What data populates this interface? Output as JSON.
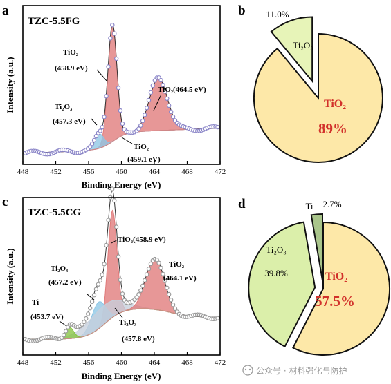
{
  "panel_labels": [
    "a",
    "b",
    "c",
    "d"
  ],
  "colors": {
    "tio2_fill": "#e07a7a",
    "ti2o3_fill": "#8dc6e6",
    "ti_fill": "#86c441",
    "bg_fill": "#f3c2bd",
    "cg_bg_fill": "#c7cfdc",
    "points_a": "#8b86c8",
    "points_c": "#9a9a9a",
    "pie_tio2": "#fde8a8",
    "pie_ti2o3": "#e7f4b8",
    "pie_ti2o3_d": "#dbefaa",
    "pie_ti": "#a9c58b",
    "pie_pct_red": "#d2312b"
  },
  "watermark": "公众号 · 材料强化与防护",
  "chart_data": [
    {
      "id": "a",
      "type": "line",
      "sample_label": "TZC-5.5FG",
      "xlabel": "Binding Energy (eV)",
      "ylabel": "Intensity (a.u.)",
      "xlim": [
        448,
        472
      ],
      "xticks": [
        "448",
        "452",
        "456",
        "460",
        "464",
        "468",
        "472"
      ],
      "series": [],
      "peaks": [
        {
          "name": "TiO₂",
          "center": 458.9,
          "height": 0.74,
          "width": 0.55,
          "color": "tio2"
        },
        {
          "name": "Ti₂O₃",
          "center": 457.3,
          "height": 0.09,
          "width": 0.55,
          "color": "ti2o3"
        },
        {
          "name": "TiO₂",
          "center": 464.5,
          "height": 0.33,
          "width": 1.1,
          "color": "tio2"
        }
      ],
      "annotations": [
        {
          "lines": [
            "TiO₂",
            "(458.9 eV)"
          ]
        },
        {
          "lines": [
            "Ti₂O₃",
            "(457.3 eV)"
          ]
        },
        {
          "lines": [
            "TiO₂(464.5 eV)"
          ]
        },
        {
          "lines": [
            "TiO₂",
            "(459.1 eV)"
          ]
        }
      ]
    },
    {
      "id": "b",
      "type": "pie",
      "slices": [
        {
          "label": "TiO₂",
          "value": 89.0,
          "display": "89%"
        },
        {
          "label": "Ti₂O₃",
          "value": 11.0,
          "display": "11.0%"
        }
      ]
    },
    {
      "id": "c",
      "type": "line",
      "sample_label": "TZC-5.5CG",
      "xlabel": "Binding Energy (eV)",
      "ylabel": "Intensity (a.u.)",
      "xlim": [
        448,
        472
      ],
      "xticks": [
        "448",
        "452",
        "456",
        "460",
        "464",
        "468",
        "472"
      ],
      "series": [],
      "peaks": [
        {
          "name": "TiO₂",
          "center": 458.9,
          "height": 0.68,
          "width": 0.55,
          "color": "tio2"
        },
        {
          "name": "Ti₂O₃",
          "center": 457.2,
          "height": 0.17,
          "width": 0.85,
          "color": "ti2o3"
        },
        {
          "name": "Ti₂O₃",
          "center": 457.8,
          "height": 0.12,
          "width": 2.2,
          "color": "cg_bg"
        },
        {
          "name": "TiO₂",
          "center": 464.1,
          "height": 0.33,
          "width": 1.1,
          "color": "tio2"
        },
        {
          "name": "Ti",
          "center": 453.7,
          "height": 0.07,
          "width": 0.5,
          "color": "ti"
        }
      ],
      "annotations": [
        {
          "lines": [
            "TiO₂(458.9 eV)"
          ]
        },
        {
          "lines": [
            "Ti₂O₃",
            "(457.2 eV)"
          ]
        },
        {
          "lines": [
            "TiO₂",
            "(464.1 eV)"
          ]
        },
        {
          "lines": [
            "Ti",
            "(453.7 eV)"
          ]
        },
        {
          "lines": [
            "Ti₂O₃",
            "(457.8 eV)"
          ]
        }
      ]
    },
    {
      "id": "d",
      "type": "pie",
      "slices": [
        {
          "label": "TiO₂",
          "value": 57.5,
          "display": "57.5%"
        },
        {
          "label": "Ti₂O₃",
          "value": 39.8,
          "display": "39.8%"
        },
        {
          "label": "Ti",
          "value": 2.7,
          "display": "2.7%"
        }
      ]
    }
  ]
}
